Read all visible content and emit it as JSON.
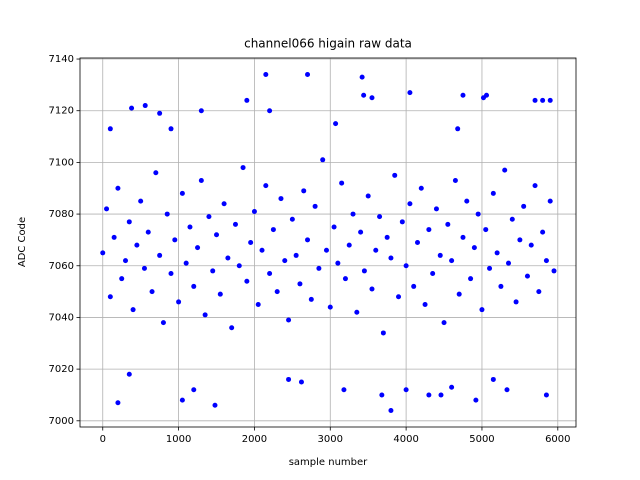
{
  "chart_data": {
    "type": "scatter",
    "title": "channel066 higain raw data",
    "xlabel": "sample number",
    "ylabel": "ADC Code",
    "color": "#0000ff",
    "grid": true,
    "xlim": [
      -300,
      6240
    ],
    "ylim": [
      6997.6,
      7140.4
    ],
    "xticks": [
      0,
      1000,
      2000,
      3000,
      4000,
      5000,
      6000
    ],
    "yticks": [
      7000,
      7020,
      7040,
      7060,
      7080,
      7100,
      7120,
      7140
    ],
    "x": [
      0,
      50,
      100,
      150,
      200,
      250,
      300,
      350,
      400,
      450,
      500,
      550,
      600,
      650,
      700,
      750,
      800,
      850,
      900,
      950,
      1000,
      1050,
      1100,
      1150,
      1200,
      1250,
      1300,
      1350,
      1400,
      1450,
      1500,
      1550,
      1600,
      1650,
      1700,
      1750,
      1800,
      1850,
      1900,
      1950,
      2000,
      2050,
      2100,
      2150,
      2200,
      2250,
      2300,
      2350,
      2400,
      2450,
      2500,
      2550,
      2600,
      2650,
      2700,
      2750,
      2800,
      2850,
      2900,
      2950,
      3000,
      3050,
      3100,
      3150,
      3200,
      3250,
      3300,
      3350,
      3400,
      3450,
      3500,
      3550,
      3600,
      3650,
      3700,
      3750,
      3800,
      3850,
      3900,
      3950,
      4000,
      4050,
      4100,
      4150,
      4200,
      4250,
      4300,
      4350,
      4400,
      4450,
      4500,
      4550,
      4600,
      4650,
      4700,
      4750,
      4800,
      4850,
      4900,
      4950,
      5000,
      5050,
      5100,
      5150,
      5200,
      5250,
      5300,
      5350,
      5400,
      5450,
      5500,
      5550,
      5600,
      5650,
      5700,
      5750,
      5800,
      5850,
      5900,
      5950,
      2150,
      2700,
      3420,
      3440,
      3550,
      4050,
      4750,
      5020,
      5060,
      1900,
      380,
      560,
      750,
      1300,
      2200,
      5900,
      5700,
      5800,
      200,
      1480,
      3800,
      4300,
      4920,
      5850,
      3680,
      4000,
      1200,
      1050,
      3180,
      2450,
      350,
      5150,
      5330,
      4600,
      4460,
      2620,
      100,
      900,
      3070,
      4680
    ],
    "values": [
      7065,
      7082,
      7048,
      7071,
      7090,
      7055,
      7062,
      7077,
      7043,
      7068,
      7085,
      7059,
      7073,
      7050,
      7096,
      7064,
      7038,
      7080,
      7057,
      7070,
      7046,
      7088,
      7061,
      7075,
      7052,
      7067,
      7093,
      7041,
      7079,
      7058,
      7072,
      7049,
      7084,
      7063,
      7036,
      7076,
      7060,
      7098,
      7054,
      7069,
      7081,
      7045,
      7066,
      7091,
      7057,
      7074,
      7050,
      7086,
      7062,
      7039,
      7078,
      7064,
      7053,
      7089,
      7070,
      7047,
      7083,
      7059,
      7101,
      7066,
      7044,
      7075,
      7061,
      7092,
      7055,
      7068,
      7080,
      7042,
      7073,
      7058,
      7087,
      7051,
      7066,
      7079,
      7034,
      7071,
      7063,
      7095,
      7048,
      7077,
      7060,
      7084,
      7052,
      7069,
      7090,
      7045,
      7074,
      7057,
      7082,
      7064,
      7038,
      7076,
      7062,
      7093,
      7049,
      7071,
      7085,
      7055,
      7067,
      7080,
      7043,
      7074,
      7059,
      7088,
      7065,
      7052,
      7097,
      7061,
      7078,
      7046,
      7070,
      7083,
      7056,
      7068,
      7091,
      7050,
      7073,
      7062,
      7085,
      7058,
      7134,
      7134,
      7133,
      7126,
      7125,
      7127,
      7126,
      7125,
      7126,
      7124,
      7121,
      7122,
      7119,
      7120,
      7120,
      7124,
      7124,
      7124,
      7007,
      7006,
      7004,
      7010,
      7008,
      7010,
      7010,
      7012,
      7012,
      7008,
      7012,
      7016,
      7018,
      7016,
      7012,
      7013,
      7010,
      7015,
      7113,
      7113,
      7115,
      7113
    ]
  }
}
